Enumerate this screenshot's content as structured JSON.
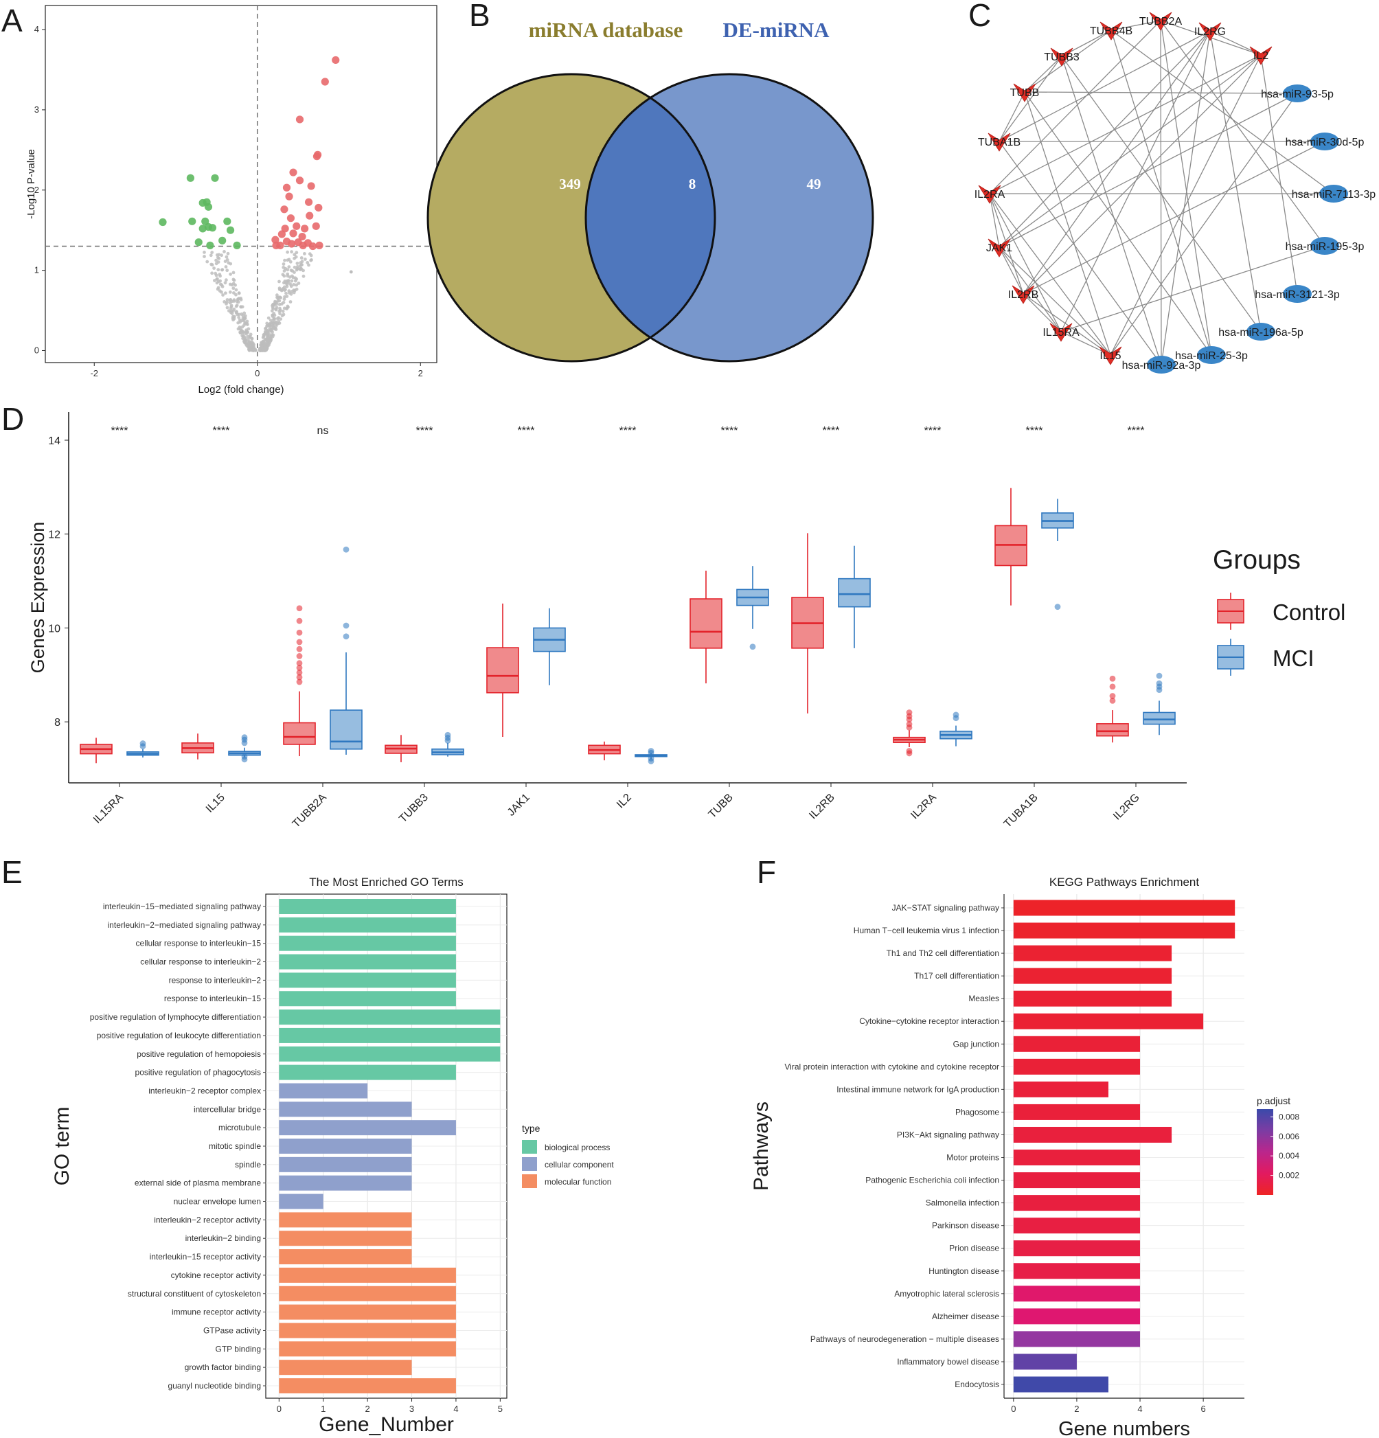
{
  "panel_labels": [
    "A",
    "B",
    "C",
    "D",
    "E",
    "F"
  ],
  "colors": {
    "up": "#e8696b",
    "down": "#5db85f",
    "ns": "#bdbdbd",
    "venn_left": "#b5ab62",
    "venn_right": "#7897cc",
    "venn_overlap": "#4f77bd",
    "venn_left_title": "#8a7d2e",
    "venn_right_title": "#3e62b0",
    "control_fill": "#f08a8c",
    "control_line": "#e3232b",
    "mci_fill": "#97bde0",
    "mci_line": "#2f78c0",
    "gene_node": "#e02d25",
    "mirna_node": "#3a86c8",
    "bp": "#66c8a4",
    "cc": "#8fa0cc",
    "mf": "#f48d62"
  },
  "chart_data": [
    {
      "panel": "A",
      "type": "scatter",
      "title": "",
      "xlabel": "Log2 (fold change)",
      "ylabel": "-Log10 P-value",
      "xlim": [
        -2.6,
        2.2
      ],
      "ylim": [
        -0.15,
        4.3
      ],
      "xticks": [
        -2,
        0,
        2
      ],
      "yticks": [
        0,
        1,
        2,
        3,
        4
      ],
      "threshold_y": 1.3,
      "threshold_x": 0,
      "series": [
        {
          "name": "up",
          "points": [
            [
              0.96,
              3.62
            ],
            [
              0.83,
              3.35
            ],
            [
              0.52,
              2.88
            ],
            [
              0.74,
              2.44
            ],
            [
              0.73,
              2.42
            ],
            [
              0.44,
              2.22
            ],
            [
              0.52,
              2.12
            ],
            [
              0.36,
              2.03
            ],
            [
              0.66,
              2.05
            ],
            [
              0.39,
              1.92
            ],
            [
              0.63,
              1.85
            ],
            [
              0.33,
              1.76
            ],
            [
              0.75,
              1.78
            ],
            [
              0.41,
              1.65
            ],
            [
              0.64,
              1.68
            ],
            [
              0.34,
              1.52
            ],
            [
              0.48,
              1.55
            ],
            [
              0.58,
              1.52
            ],
            [
              0.72,
              1.55
            ],
            [
              0.3,
              1.45
            ],
            [
              0.44,
              1.46
            ],
            [
              0.55,
              1.42
            ],
            [
              0.22,
              1.38
            ],
            [
              0.36,
              1.36
            ],
            [
              0.5,
              1.35
            ],
            [
              0.62,
              1.34
            ],
            [
              0.68,
              1.3
            ],
            [
              0.76,
              1.31
            ],
            [
              0.28,
              1.31
            ],
            [
              0.42,
              1.33
            ],
            [
              0.56,
              1.31
            ],
            [
              0.23,
              1.31
            ]
          ]
        },
        {
          "name": "down",
          "points": [
            [
              -0.82,
              2.15
            ],
            [
              -0.52,
              2.15
            ],
            [
              -0.62,
              1.85
            ],
            [
              -0.67,
              1.84
            ],
            [
              -0.6,
              1.79
            ],
            [
              -1.16,
              1.6
            ],
            [
              -0.8,
              1.61
            ],
            [
              -0.64,
              1.61
            ],
            [
              -0.37,
              1.61
            ],
            [
              -0.6,
              1.54
            ],
            [
              -0.55,
              1.53
            ],
            [
              -0.67,
              1.52
            ],
            [
              -0.33,
              1.5
            ],
            [
              -0.72,
              1.35
            ],
            [
              -0.43,
              1.37
            ],
            [
              -0.25,
              1.31
            ],
            [
              -0.58,
              1.31
            ]
          ]
        },
        {
          "name": "ns",
          "points": []
        }
      ]
    },
    {
      "panel": "B",
      "type": "venn",
      "sets": [
        {
          "name": "miRNA database",
          "only": 349
        },
        {
          "name": "DE-miRNA",
          "only": 49
        }
      ],
      "intersection": 8
    },
    {
      "panel": "C",
      "type": "network",
      "genes": [
        "TUBB2A",
        "IL2RG",
        "IL2",
        "TUBB4B",
        "TUBB3",
        "TUBB",
        "TUBA1B",
        "IL2RA",
        "JAK1",
        "IL2RB",
        "IL15RA",
        "IL15"
      ],
      "mirnas": [
        "hsa-miR-93-5p",
        "hsa-miR-30d-5p",
        "hsa-miR-7113-3p",
        "hsa-miR-195-3p",
        "hsa-miR-3121-3p",
        "hsa-miR-196a-5p",
        "hsa-miR-25-3p",
        "hsa-miR-92a-3p"
      ]
    },
    {
      "panel": "D",
      "type": "box",
      "ylabel": "Genes Expression",
      "ylim": [
        6.7,
        14.6
      ],
      "yticks": [
        8,
        10,
        12,
        14
      ],
      "legend_title": "Groups",
      "groups": [
        "Control",
        "MCI"
      ],
      "categories": [
        "IL15RA",
        "IL15",
        "TUBB2A",
        "TUBB3",
        "JAK1",
        "IL2",
        "TUBB",
        "IL2RB",
        "IL2RA",
        "TUBA1B",
        "IL2RG"
      ],
      "significance": [
        "****",
        "****",
        "ns",
        "****",
        "****",
        "****",
        "****",
        "****",
        "****",
        "****",
        "****"
      ],
      "series": [
        {
          "name": "Control",
          "boxes": [
            [
              7.12,
              7.32,
              7.42,
              7.52,
              7.66
            ],
            [
              7.2,
              7.34,
              7.44,
              7.55,
              7.75
            ],
            [
              7.27,
              7.52,
              7.68,
              7.98,
              8.65
            ],
            [
              7.14,
              7.33,
              7.43,
              7.5,
              7.72
            ],
            [
              7.68,
              8.62,
              8.98,
              9.58,
              10.52
            ],
            [
              7.18,
              7.32,
              7.4,
              7.5,
              7.58
            ],
            [
              8.82,
              9.57,
              9.92,
              10.62,
              11.22
            ],
            [
              8.18,
              9.57,
              10.1,
              10.65,
              12.02
            ],
            [
              7.46,
              7.56,
              7.62,
              7.67,
              7.82
            ],
            [
              10.48,
              11.33,
              11.77,
              12.18,
              12.98
            ],
            [
              7.56,
              7.7,
              7.8,
              7.96,
              8.25
            ]
          ],
          "outliers": [
            [],
            [],
            [
              8.85,
              8.95,
              9.05,
              9.15,
              9.25,
              9.4,
              9.55,
              9.7,
              9.9,
              10.15,
              10.42
            ],
            [],
            [],
            [],
            [],
            [],
            [
              7.33,
              7.38,
              7.88,
              7.95,
              8.05,
              8.12,
              8.2
            ],
            [],
            [
              8.45,
              8.55,
              8.75,
              8.92
            ]
          ]
        },
        {
          "name": "MCI",
          "boxes": [
            [
              7.24,
              7.29,
              7.32,
              7.36,
              7.42
            ],
            [
              7.24,
              7.29,
              7.33,
              7.37,
              7.45
            ],
            [
              7.3,
              7.42,
              7.58,
              8.25,
              9.48
            ],
            [
              7.26,
              7.3,
              7.35,
              7.42,
              7.55
            ],
            [
              8.78,
              9.5,
              9.75,
              10.0,
              10.42
            ],
            [
              7.2,
              7.26,
              7.28,
              7.3,
              7.33
            ],
            [
              9.98,
              10.48,
              10.65,
              10.82,
              11.32
            ],
            [
              9.57,
              10.45,
              10.72,
              11.05,
              11.75
            ],
            [
              7.48,
              7.64,
              7.72,
              7.8,
              7.92
            ],
            [
              11.85,
              12.13,
              12.28,
              12.45,
              12.75
            ],
            [
              7.72,
              7.95,
              8.05,
              8.2,
              8.45
            ]
          ],
          "outliers": [
            [
              7.48,
              7.54
            ],
            [
              7.2,
              7.26,
              7.55,
              7.62,
              7.67
            ],
            [
              9.82,
              10.05,
              11.67
            ],
            [
              7.6,
              7.66,
              7.72
            ],
            [],
            [
              7.16,
              7.22,
              7.34,
              7.38
            ],
            [
              9.6
            ],
            [],
            [
              8.08,
              8.15
            ],
            [
              10.45
            ],
            [
              8.68,
              8.75,
              8.82,
              8.98
            ]
          ]
        }
      ]
    },
    {
      "panel": "E",
      "type": "bar",
      "title": "The Most Enriched GO Terms",
      "xlabel": "Gene_Number",
      "ylabel": "GO term",
      "xlim": [
        -0.3,
        5.15
      ],
      "xticks": [
        0,
        1,
        2,
        3,
        4,
        5
      ],
      "legend_title": "type",
      "legend": [
        {
          "key": "bp",
          "label": "biological process"
        },
        {
          "key": "cc",
          "label": "cellular component"
        },
        {
          "key": "mf",
          "label": "molecular function"
        }
      ],
      "categories": [
        "interleukin−15−mediated signaling pathway",
        "interleukin−2−mediated signaling pathway",
        "cellular response to interleukin−15",
        "cellular response to interleukin−2",
        "response to interleukin−2",
        "response to interleukin−15",
        "positive regulation of lymphocyte differentiation",
        "positive regulation of leukocyte differentiation",
        "positive regulation of hemopoiesis",
        "positive regulation of phagocytosis",
        "interleukin−2 receptor complex",
        "intercellular bridge",
        "microtubule",
        "mitotic spindle",
        "spindle",
        "external side of plasma membrane",
        "nuclear envelope lumen",
        "interleukin−2 receptor activity",
        "interleukin−2 binding",
        "interleukin−15 receptor activity",
        "cytokine receptor activity",
        "structural constituent of cytoskeleton",
        "immune receptor activity",
        "GTPase activity",
        "GTP binding",
        "growth factor binding",
        "guanyl nucleotide binding"
      ],
      "values": [
        4,
        4,
        4,
        4,
        4,
        4,
        5,
        5,
        5,
        4,
        2,
        3,
        4,
        3,
        3,
        3,
        1,
        3,
        3,
        3,
        4,
        4,
        4,
        4,
        4,
        3,
        4
      ],
      "types": [
        "bp",
        "bp",
        "bp",
        "bp",
        "bp",
        "bp",
        "bp",
        "bp",
        "bp",
        "bp",
        "cc",
        "cc",
        "cc",
        "cc",
        "cc",
        "cc",
        "cc",
        "mf",
        "mf",
        "mf",
        "mf",
        "mf",
        "mf",
        "mf",
        "mf",
        "mf",
        "mf"
      ]
    },
    {
      "panel": "F",
      "type": "bar",
      "title": "KEGG Pathways Enrichment",
      "xlabel": "Gene numbers",
      "ylabel": "Pathways",
      "xlim": [
        -0.3,
        7.3
      ],
      "xticks": [
        0,
        2,
        4,
        6
      ],
      "legend_title": "p.adjust",
      "legend_ticks": [
        0.002,
        0.004,
        0.006,
        0.008
      ],
      "legend_range": [
        0.0,
        0.0088
      ],
      "categories": [
        "JAK−STAT signaling pathway",
        "Human T−cell leukemia virus 1 infection",
        "Th1 and Th2 cell differentiation",
        "Th17 cell differentiation",
        "Measles",
        "Cytokine−cytokine receptor interaction",
        "Gap junction",
        "Viral protein interaction with cytokine and cytokine receptor",
        "Intestinal immune network for IgA production",
        "Phagosome",
        "PI3K−Akt signaling pathway",
        "Motor proteins",
        "Pathogenic Escherichia coli infection",
        "Salmonella infection",
        "Parkinson disease",
        "Prion disease",
        "Huntington disease",
        "Amyotrophic lateral sclerosis",
        "Alzheimer disease",
        "Pathways of neurodegeneration − multiple diseases",
        "Inflammatory bowel disease",
        "Endocytosis"
      ],
      "values": [
        7,
        7,
        5,
        5,
        5,
        6,
        4,
        4,
        3,
        4,
        5,
        4,
        4,
        4,
        4,
        4,
        4,
        4,
        4,
        4,
        2,
        3
      ],
      "p_adjust": [
        0.0002,
        0.0003,
        0.0005,
        0.0005,
        0.0006,
        0.0006,
        0.0007,
        0.0007,
        0.0008,
        0.0008,
        0.0009,
        0.0009,
        0.001,
        0.001,
        0.0011,
        0.0012,
        0.0013,
        0.0026,
        0.0028,
        0.0058,
        0.0075,
        0.0086
      ]
    }
  ]
}
